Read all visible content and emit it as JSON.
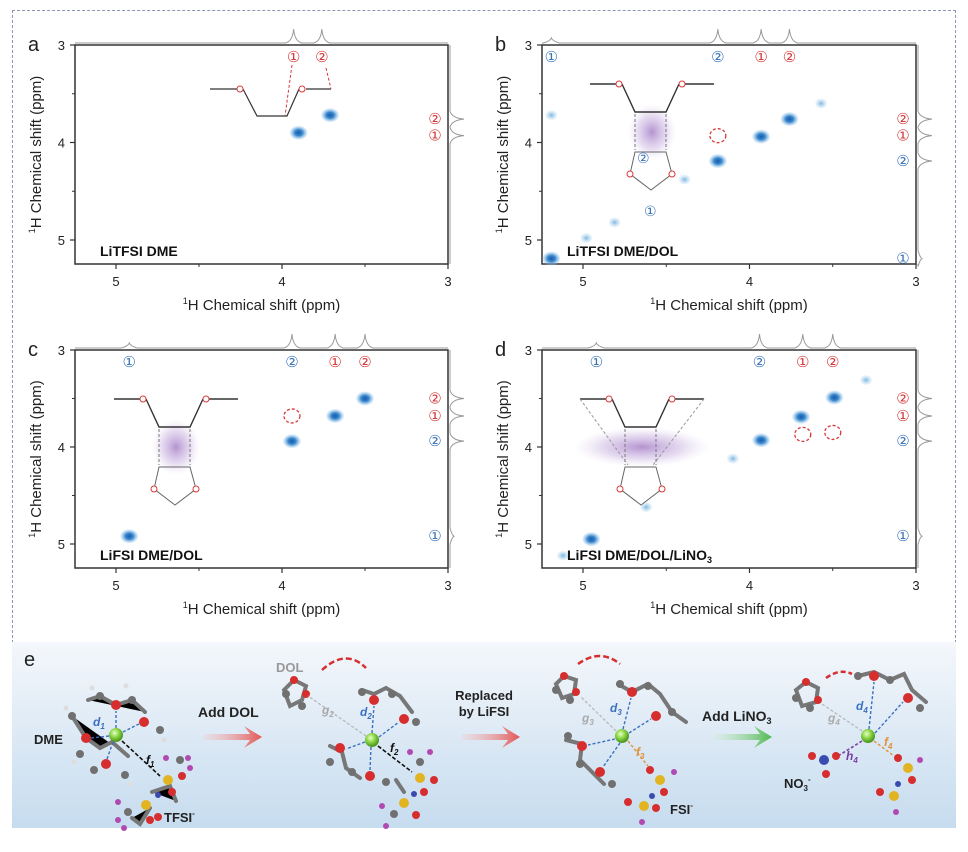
{
  "figure": {
    "panel_e_label": "e",
    "scheme_labels": {
      "dme": "DME",
      "tfsi": "TFSI",
      "tfsi_sup": "-",
      "dol": "DOL",
      "fsi": "FSI",
      "fsi_sup": "-",
      "no3": "NO",
      "no3_sub": "3",
      "no3_sup": "-",
      "step1": "Add DOL",
      "step2_line1": "Replaced",
      "step2_line2": "by LiFSI",
      "step3": "Add LiNO",
      "step3_sub": "3",
      "d1": "d",
      "d1_sub": "1",
      "f1": "f",
      "f1_sub": "1",
      "d2": "d",
      "d2_sub": "2",
      "f2": "f",
      "f2_sub": "2",
      "g2": "g",
      "g2_sub": "2",
      "d3": "d",
      "d3_sub": "3",
      "f3": "f",
      "f3_sub": "3",
      "g3": "g",
      "g3_sub": "3",
      "d4": "d",
      "d4_sub": "4",
      "f4": "f",
      "f4_sub": "4",
      "g4": "g",
      "g4_sub": "4",
      "h4": "h",
      "h4_sub": "4"
    },
    "colors": {
      "contour_dark": "#1f6fb8",
      "contour_light": "#8fc1e3",
      "dme_marker": "#d6393b",
      "dol_marker": "#3c74b8",
      "li_ion": "#7ccf3a",
      "border": "#8a96b4",
      "arrow_red": "#e06060",
      "arrow_green": "#5cbf5c"
    }
  },
  "chart_data": [
    {
      "type": "heatmap",
      "panel": "a",
      "title": "LiTFSI DME",
      "xlabel": "1H Chemical shift (ppm)",
      "ylabel": "1H Chemical shift (ppm)",
      "xlim": [
        5.25,
        3
      ],
      "ylim": [
        3,
        5.25
      ],
      "xticks": [
        "5",
        "4",
        "3"
      ],
      "yticks": [
        "3",
        "4",
        "5"
      ],
      "top_markers": [
        {
          "label": "1",
          "group": "DME",
          "ppm": 3.93
        },
        {
          "label": "2",
          "group": "DME",
          "ppm": 3.76
        }
      ],
      "right_markers": [
        {
          "label": "2",
          "group": "DME",
          "ppm": 3.76
        },
        {
          "label": "1",
          "group": "DME",
          "ppm": 3.93
        }
      ],
      "cross_peaks": [
        {
          "x": 3.9,
          "y": 3.9,
          "intensity": "strong"
        },
        {
          "x": 3.71,
          "y": 3.72,
          "intensity": "strong"
        }
      ],
      "dashed_circles": []
    },
    {
      "type": "heatmap",
      "panel": "b",
      "title": "LiTFSI DME/DOL",
      "xlabel": "1H Chemical shift (ppm)",
      "ylabel": "1H Chemical shift (ppm)",
      "xlim": [
        5.25,
        3
      ],
      "ylim": [
        3,
        5.25
      ],
      "xticks": [
        "5",
        "4",
        "3"
      ],
      "yticks": [
        "3",
        "4",
        "5"
      ],
      "top_markers": [
        {
          "label": "1",
          "group": "DOL",
          "ppm": 5.19
        },
        {
          "label": "2",
          "group": "DOL",
          "ppm": 4.19
        },
        {
          "label": "1",
          "group": "DME",
          "ppm": 3.93
        },
        {
          "label": "2",
          "group": "DME",
          "ppm": 3.76
        }
      ],
      "right_markers": [
        {
          "label": "2",
          "group": "DME",
          "ppm": 3.76
        },
        {
          "label": "1",
          "group": "DME",
          "ppm": 3.93
        },
        {
          "label": "2",
          "group": "DOL",
          "ppm": 4.19
        },
        {
          "label": "1",
          "group": "DOL",
          "ppm": 5.19
        }
      ],
      "cross_peaks": [
        {
          "x": 5.19,
          "y": 5.19,
          "intensity": "strong"
        },
        {
          "x": 4.19,
          "y": 4.19,
          "intensity": "strong"
        },
        {
          "x": 3.93,
          "y": 3.94,
          "intensity": "strong"
        },
        {
          "x": 3.76,
          "y": 3.76,
          "intensity": "strong"
        },
        {
          "x": 4.39,
          "y": 4.38,
          "intensity": "weak"
        },
        {
          "x": 4.81,
          "y": 4.82,
          "intensity": "weak"
        },
        {
          "x": 4.98,
          "y": 4.98,
          "intensity": "weak"
        },
        {
          "x": 3.57,
          "y": 3.6,
          "intensity": "weak"
        },
        {
          "x": 5.19,
          "y": 3.72,
          "intensity": "weak"
        }
      ],
      "dashed_circles": [
        {
          "x": 4.19,
          "y": 3.93
        }
      ]
    },
    {
      "type": "heatmap",
      "panel": "c",
      "title": "LiFSI DME/DOL",
      "xlabel": "1H Chemical shift (ppm)",
      "ylabel": "1H Chemical shift (ppm)",
      "xlim": [
        5.25,
        3
      ],
      "ylim": [
        3,
        5.25
      ],
      "xticks": [
        "5",
        "4",
        "3"
      ],
      "yticks": [
        "3",
        "4",
        "5"
      ],
      "top_markers": [
        {
          "label": "1",
          "group": "DOL",
          "ppm": 4.92
        },
        {
          "label": "2",
          "group": "DOL",
          "ppm": 3.94
        },
        {
          "label": "1",
          "group": "DME",
          "ppm": 3.68
        },
        {
          "label": "2",
          "group": "DME",
          "ppm": 3.5
        }
      ],
      "right_markers": [
        {
          "label": "2",
          "group": "DME",
          "ppm": 3.5
        },
        {
          "label": "1",
          "group": "DME",
          "ppm": 3.68
        },
        {
          "label": "2",
          "group": "DOL",
          "ppm": 3.94
        },
        {
          "label": "1",
          "group": "DOL",
          "ppm": 4.92
        }
      ],
      "cross_peaks": [
        {
          "x": 4.92,
          "y": 4.92,
          "intensity": "strong"
        },
        {
          "x": 3.94,
          "y": 3.94,
          "intensity": "strong"
        },
        {
          "x": 3.68,
          "y": 3.68,
          "intensity": "strong"
        },
        {
          "x": 3.5,
          "y": 3.5,
          "intensity": "strong"
        }
      ],
      "dashed_circles": [
        {
          "x": 3.94,
          "y": 3.68
        }
      ]
    },
    {
      "type": "heatmap",
      "panel": "d",
      "title": "LiFSI DME/DOL/LiNO3",
      "xlabel": "1H Chemical shift (ppm)",
      "ylabel": "1H Chemical shift (ppm)",
      "xlim": [
        5.25,
        3
      ],
      "ylim": [
        3,
        5.25
      ],
      "xticks": [
        "5",
        "4",
        "3"
      ],
      "yticks": [
        "3",
        "4",
        "5"
      ],
      "top_markers": [
        {
          "label": "1",
          "group": "DOL",
          "ppm": 4.92
        },
        {
          "label": "2",
          "group": "DOL",
          "ppm": 3.94
        },
        {
          "label": "1",
          "group": "DME",
          "ppm": 3.68
        },
        {
          "label": "2",
          "group": "DME",
          "ppm": 3.5
        }
      ],
      "right_markers": [
        {
          "label": "2",
          "group": "DME",
          "ppm": 3.5
        },
        {
          "label": "1",
          "group": "DME",
          "ppm": 3.68
        },
        {
          "label": "2",
          "group": "DOL",
          "ppm": 3.94
        },
        {
          "label": "1",
          "group": "DOL",
          "ppm": 4.92
        }
      ],
      "cross_peaks": [
        {
          "x": 4.95,
          "y": 4.95,
          "intensity": "strong"
        },
        {
          "x": 3.93,
          "y": 3.93,
          "intensity": "strong"
        },
        {
          "x": 3.69,
          "y": 3.69,
          "intensity": "strong"
        },
        {
          "x": 3.49,
          "y": 3.49,
          "intensity": "strong"
        },
        {
          "x": 4.62,
          "y": 4.62,
          "intensity": "weak"
        },
        {
          "x": 4.1,
          "y": 4.12,
          "intensity": "weak"
        },
        {
          "x": 5.12,
          "y": 5.12,
          "intensity": "weak"
        },
        {
          "x": 3.3,
          "y": 3.31,
          "intensity": "weak"
        }
      ],
      "dashed_circles": [
        {
          "x": 3.68,
          "y": 3.87
        },
        {
          "x": 3.5,
          "y": 3.85
        }
      ]
    }
  ]
}
